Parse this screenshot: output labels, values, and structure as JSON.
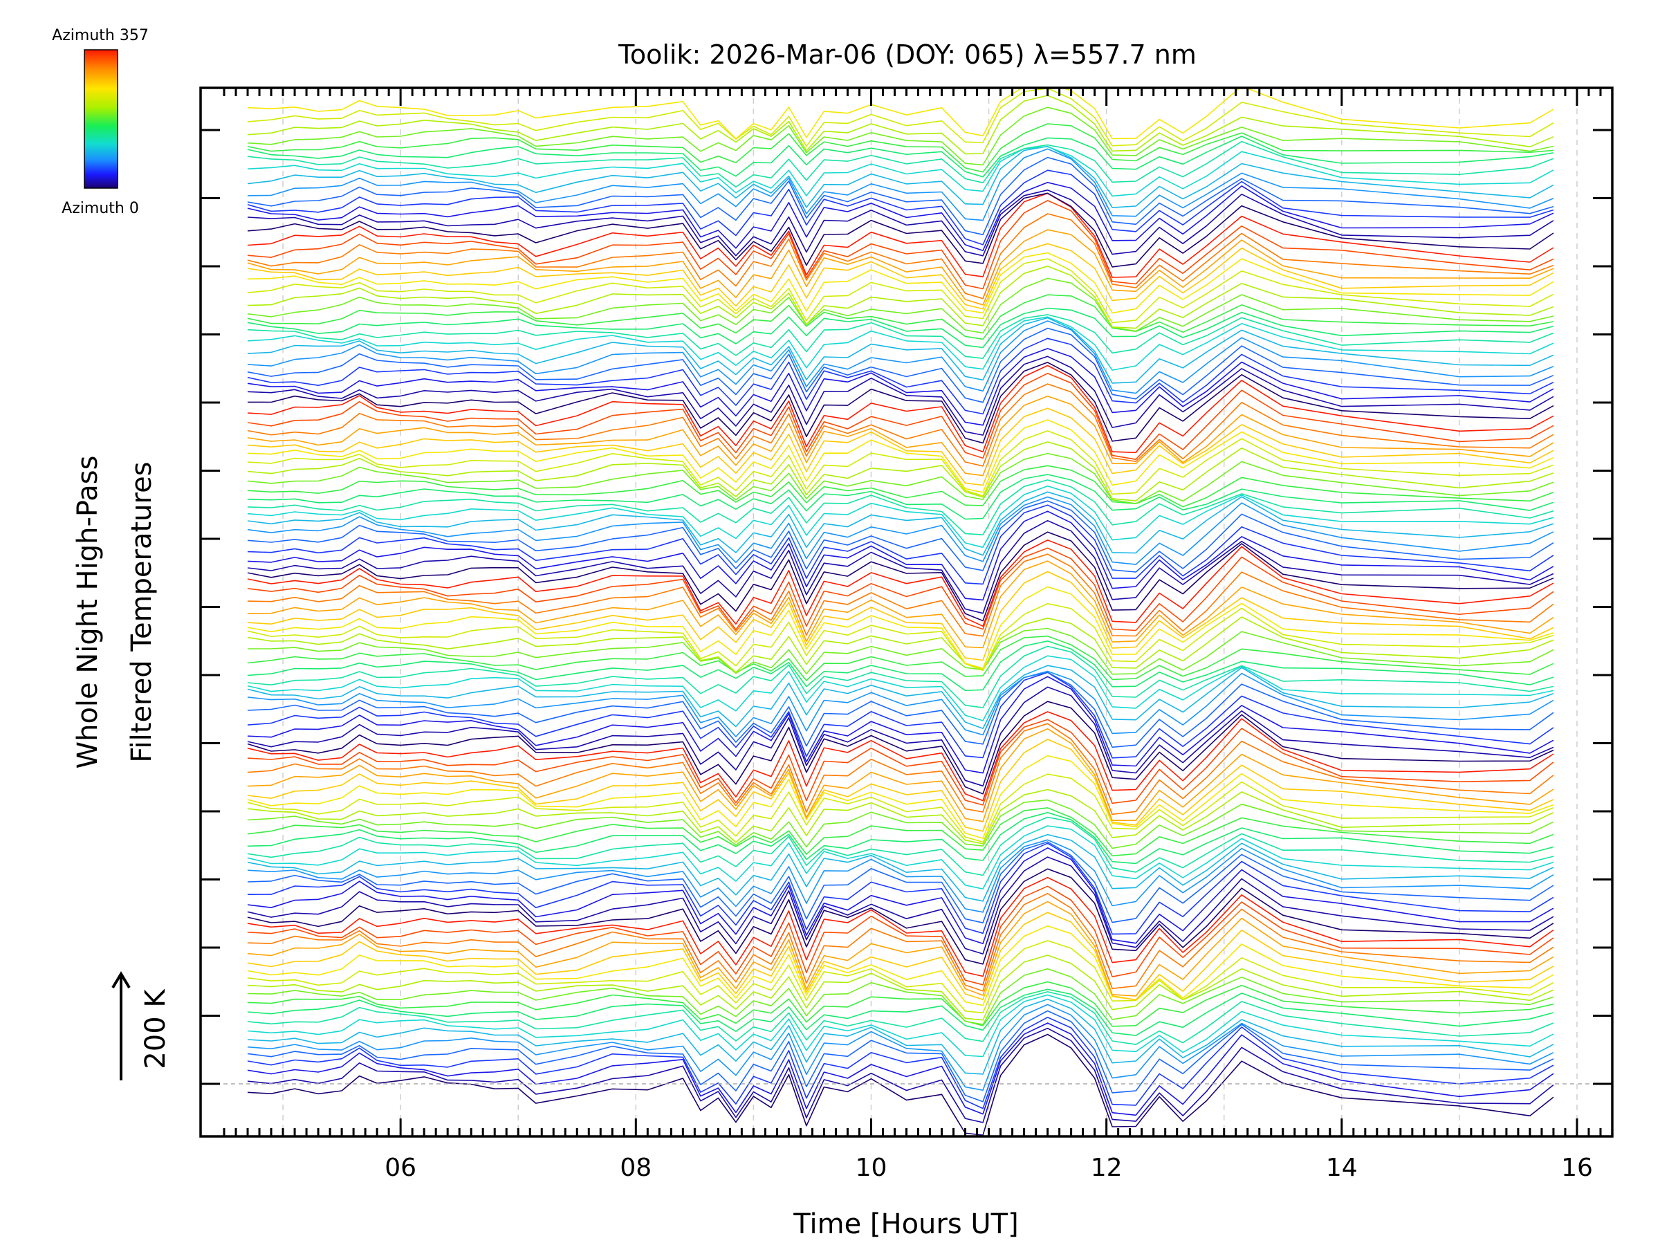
{
  "chart_data": {
    "type": "line",
    "title": "Toolik: 2026-Mar-06 (DOY: 065) λ=557.7 nm",
    "xlabel": "Time [Hours UT]",
    "ylabel_line1": "Whole Night High-Pass",
    "ylabel_line2": "Filtered Temperatures",
    "scale_label": "200 K",
    "xlim": [
      4.3,
      16.3
    ],
    "x_ticks": [
      6,
      8,
      10,
      12,
      14,
      16
    ],
    "x_tick_labels": [
      "06",
      "08",
      "10",
      "12",
      "14",
      "16"
    ],
    "y_major_tick_count": 15,
    "colorbar": {
      "top_label": "Azimuth 357",
      "bottom_label": "Azimuth 0",
      "colors": [
        "#ff1a00",
        "#ff8c00",
        "#ffe600",
        "#a8f000",
        "#19ee55",
        "#12ddd0",
        "#1a8cff",
        "#1a1aff",
        "#1c0070"
      ]
    },
    "n_traces": 115,
    "time_samples": [
      4.7,
      4.9,
      5.1,
      5.3,
      5.5,
      5.65,
      5.8,
      6.0,
      6.2,
      6.4,
      6.6,
      6.8,
      7.0,
      7.15,
      7.5,
      7.8,
      8.1,
      8.4,
      8.55,
      8.7,
      8.85,
      9.0,
      9.15,
      9.3,
      9.45,
      9.6,
      9.8,
      10.0,
      10.3,
      10.6,
      10.8,
      10.95,
      11.1,
      11.3,
      11.5,
      11.7,
      11.9,
      12.05,
      12.25,
      12.45,
      12.65,
      12.85,
      13.15,
      13.5,
      14.0,
      15.0,
      15.6,
      15.8
    ],
    "base_waveform": [
      0,
      -3,
      2,
      -2,
      1,
      14,
      4,
      3,
      6,
      2,
      5,
      3,
      4,
      -12,
      -5,
      5,
      3,
      8,
      -28,
      -15,
      -40,
      -10,
      -20,
      15,
      -38,
      2,
      -3,
      12,
      -5,
      0,
      -45,
      -48,
      10,
      40,
      55,
      40,
      10,
      -40,
      -42,
      -8,
      -30,
      -5,
      35,
      5,
      -10,
      -18,
      -22,
      -5
    ]
  }
}
